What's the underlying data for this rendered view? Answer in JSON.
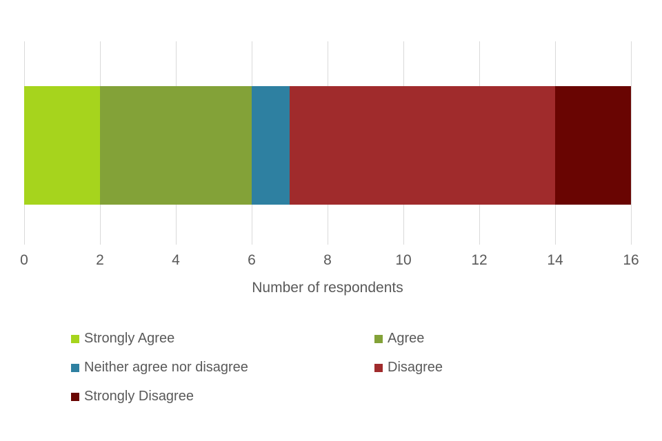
{
  "chart_data": {
    "type": "bar",
    "subtype": "horizontal-stacked",
    "title": "",
    "xlabel": "Number of respondents",
    "ylabel": "",
    "xlim": [
      0,
      16
    ],
    "x_ticks": [
      0,
      2,
      4,
      6,
      8,
      10,
      12,
      14,
      16
    ],
    "grid": true,
    "legend_position": "bottom",
    "series": [
      {
        "name": "Strongly Agree",
        "value": 2,
        "color": "#a6d41d"
      },
      {
        "name": "Agree",
        "value": 4,
        "color": "#83a238"
      },
      {
        "name": "Neither agree nor disagree",
        "value": 1,
        "color": "#2e80a1"
      },
      {
        "name": "Disagree",
        "value": 7,
        "color": "#a02b2c"
      },
      {
        "name": "Strongly Disagree",
        "value": 2,
        "color": "#690502"
      }
    ]
  },
  "colors": {
    "gridline": "#d9d9d9",
    "text": "#595959",
    "background": "#ffffff"
  }
}
